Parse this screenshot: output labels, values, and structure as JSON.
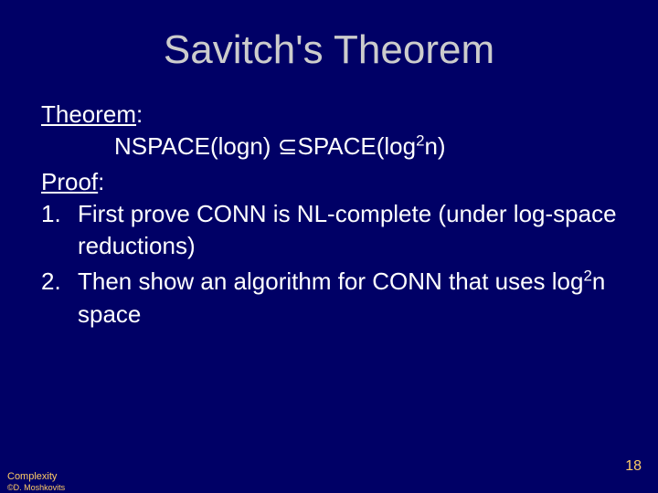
{
  "background_color": "#000066",
  "title_color": "#cccccc",
  "text_color": "#ffffff",
  "footer_color": "#ffcc66",
  "title": "Savitch's Theorem",
  "theorem_label": "Theorem",
  "theorem_statement_pre": "NSPACE(logn) ",
  "theorem_statement_sub": "⊆",
  "theorem_statement_post": "SPACE(log",
  "theorem_statement_exp": "2",
  "theorem_statement_end": "n)",
  "proof_label": "Proof",
  "items": [
    {
      "num": "1.",
      "text": "First prove CONN is NL-complete (under log-space reductions)"
    },
    {
      "num": "2.",
      "text_pre": "Then show an algorithm for CONN that uses log",
      "exp": "2",
      "text_post": "n space"
    }
  ],
  "footer_line1": "Complexity",
  "footer_line2": "©D. Moshkovits",
  "page_number": "18",
  "colon": ":"
}
